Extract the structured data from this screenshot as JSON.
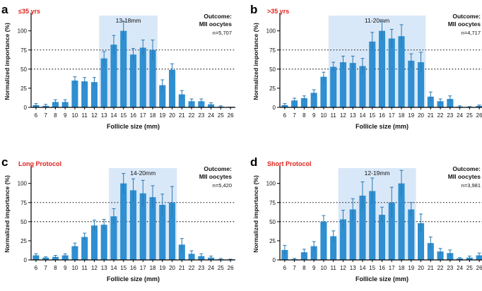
{
  "colors": {
    "bar": "#2f8fd1",
    "window": "#d9e8f8",
    "condition": "#e0231d",
    "error": "#2a78b0"
  },
  "chart_data": [
    {
      "type": "bar",
      "panel_label": "a",
      "condition": "≤35 yrs",
      "window_label": "13-18mm",
      "window_range": [
        13,
        18
      ],
      "outcome_line1": "Outcome:",
      "outcome_line2": "MII oocytes",
      "n_label": "n=5,707",
      "xlabel": "Follicle size (mm)",
      "ylabel": "Normalized importance (%)",
      "ylim": [
        0,
        120
      ],
      "yticks": [
        0,
        25,
        50,
        75,
        100
      ],
      "reference_lines": [
        50,
        75
      ],
      "categories": [
        "6",
        "7",
        "8",
        "9",
        "10",
        "11",
        "12",
        "13",
        "14",
        "15",
        "16",
        "17",
        "18",
        "19",
        "20",
        "21",
        "22",
        "23",
        "24",
        "25",
        "26"
      ],
      "values": [
        3,
        2,
        7,
        7,
        35,
        34,
        33,
        64,
        82,
        100,
        69,
        78,
        75,
        29,
        49,
        17,
        8,
        8,
        4,
        1,
        0
      ],
      "errors": [
        2,
        2,
        3,
        3,
        5,
        5,
        6,
        9,
        12,
        12,
        8,
        10,
        13,
        7,
        8,
        5,
        3,
        3,
        2,
        1,
        0
      ]
    },
    {
      "type": "bar",
      "panel_label": "b",
      "condition": ">35 yrs",
      "window_label": "11-20mm",
      "window_range": [
        11,
        20
      ],
      "outcome_line1": "Outcome:",
      "outcome_line2": "MII oocytes",
      "n_label": "n=4,717",
      "xlabel": "Follicle size (mm)",
      "ylabel": "Normalized importance (%)",
      "ylim": [
        0,
        120
      ],
      "yticks": [
        0,
        25,
        50,
        75,
        100
      ],
      "reference_lines": [
        50,
        75
      ],
      "categories": [
        "6",
        "7",
        "8",
        "9",
        "10",
        "11",
        "12",
        "13",
        "14",
        "15",
        "16",
        "17",
        "18",
        "19",
        "20",
        "21",
        "22",
        "23",
        "24",
        "25",
        "26"
      ],
      "values": [
        3,
        9,
        12,
        19,
        40,
        53,
        59,
        58,
        54,
        86,
        100,
        90,
        93,
        61,
        59,
        14,
        8,
        11,
        1,
        0,
        2
      ],
      "errors": [
        2,
        3,
        3,
        4,
        6,
        6,
        8,
        9,
        10,
        12,
        12,
        12,
        15,
        9,
        13,
        6,
        3,
        4,
        1,
        1,
        1
      ]
    },
    {
      "type": "bar",
      "panel_label": "c",
      "condition": "Long Protocol",
      "window_label": "14-20mm",
      "window_range": [
        14,
        20
      ],
      "outcome_line1": "Outcome:",
      "outcome_line2": "MII oocytes",
      "n_label": "n=5,420",
      "xlabel": "Follicle size (mm)",
      "ylabel": "Normalized importance (%)",
      "ylim": [
        0,
        120
      ],
      "yticks": [
        0,
        25,
        50,
        75,
        100
      ],
      "reference_lines": [
        50,
        75
      ],
      "categories": [
        "6",
        "7",
        "8",
        "9",
        "10",
        "11",
        "12",
        "13",
        "14",
        "15",
        "16",
        "17",
        "18",
        "19",
        "20",
        "21",
        "22",
        "23",
        "24",
        "25",
        "26"
      ],
      "values": [
        6,
        3,
        4,
        6,
        18,
        30,
        45,
        46,
        57,
        100,
        91,
        87,
        82,
        72,
        75,
        20,
        8,
        5,
        3,
        1,
        0
      ],
      "errors": [
        2,
        1,
        2,
        2,
        4,
        5,
        7,
        7,
        10,
        13,
        15,
        17,
        15,
        14,
        21,
        8,
        4,
        3,
        2,
        1,
        1
      ]
    },
    {
      "type": "bar",
      "panel_label": "d",
      "condition": "Short Protocol",
      "window_label": "12-19mm",
      "window_range": [
        12,
        19
      ],
      "outcome_line1": "Outcome:",
      "outcome_line2": "MII oocytes",
      "n_label": "n=3,981",
      "xlabel": "Follicle size (mm)",
      "ylabel": "Normalized importance (%)",
      "ylim": [
        0,
        120
      ],
      "yticks": [
        0,
        25,
        50,
        75,
        100
      ],
      "reference_lines": [
        50,
        75
      ],
      "categories": [
        "6",
        "7",
        "8",
        "9",
        "10",
        "11",
        "12",
        "13",
        "14",
        "15",
        "16",
        "17",
        "18",
        "19",
        "20",
        "21",
        "22",
        "23",
        "24",
        "25",
        "26"
      ],
      "values": [
        13,
        1,
        10,
        18,
        50,
        31,
        53,
        66,
        84,
        90,
        59,
        75,
        100,
        66,
        48,
        22,
        11,
        9,
        2,
        3,
        6
      ],
      "errors": [
        6,
        1,
        4,
        6,
        8,
        7,
        12,
        14,
        18,
        17,
        10,
        20,
        17,
        9,
        12,
        8,
        4,
        4,
        1,
        2,
        3
      ]
    }
  ]
}
